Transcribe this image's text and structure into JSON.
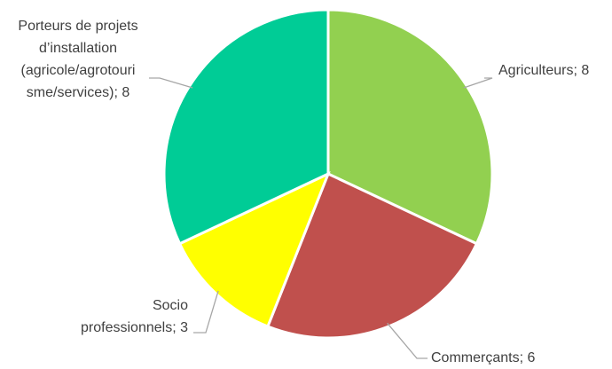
{
  "chart_data": {
    "type": "pie",
    "values": [
      8,
      6,
      3,
      8
    ],
    "value_labels": [
      [
        "Agriculteurs; 8"
      ],
      [
        "Commerçants; 6"
      ],
      [
        "Socio",
        "professionnels; 3"
      ],
      [
        "Porteurs de projets",
        "d’installation",
        "(agricole/agrotouri",
        "sme/services); 8"
      ]
    ],
    "colors": [
      "#92d050",
      "#c0504d",
      "#ffff00",
      "#00cc96"
    ]
  }
}
